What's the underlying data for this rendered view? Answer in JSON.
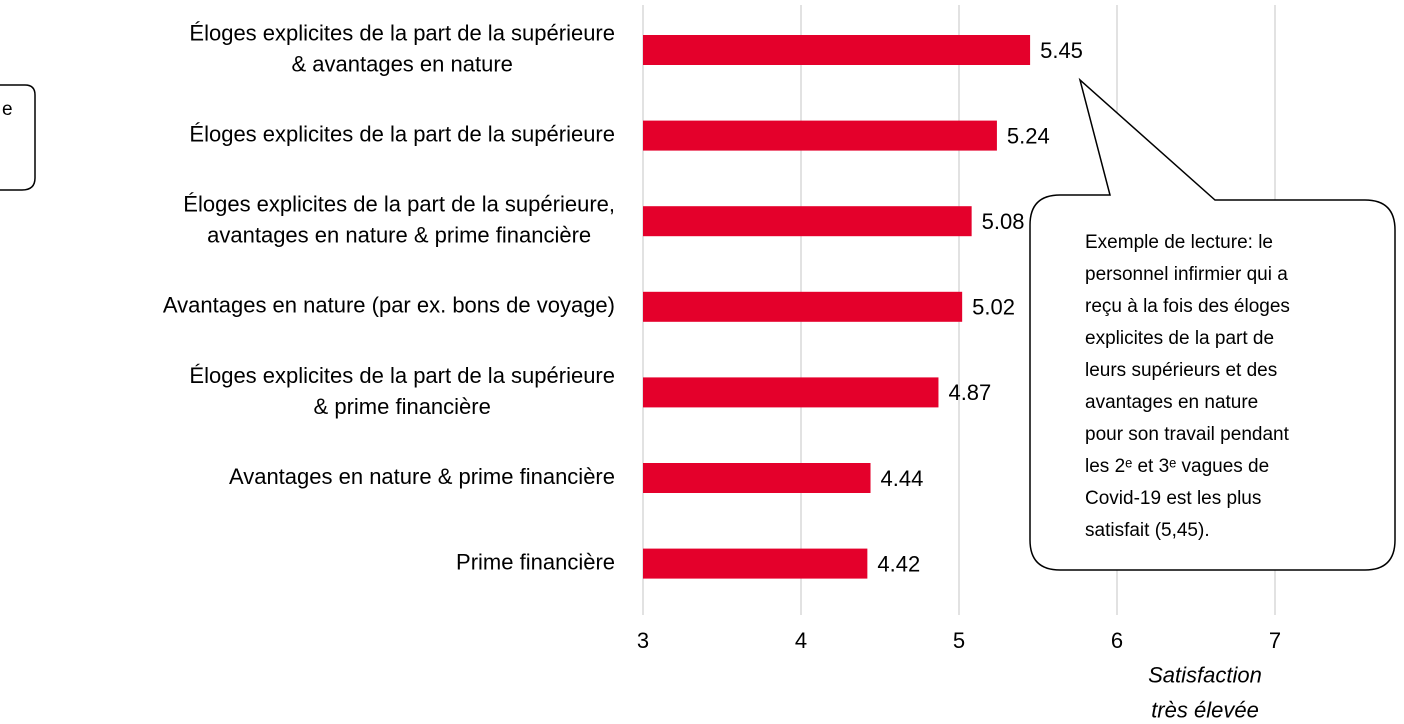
{
  "chart_data": {
    "type": "bar",
    "orientation": "horizontal",
    "categories": [
      "Éloges explicites de la part de la supérieure\n& avantages en nature",
      "Éloges explicites de la part de la supérieure",
      "Éloges explicites de la part de la supérieure,\navantages en nature & prime financière",
      "Avantages en nature (par ex. bons de voyage)",
      "Éloges explicites de la part de la supérieure\n& prime financière",
      "Avantages en nature & prime financière",
      "Prime financière"
    ],
    "values": [
      5.45,
      5.24,
      5.08,
      5.02,
      4.87,
      4.44,
      4.42
    ],
    "color": "#e4002b",
    "xlim": [
      3,
      7
    ],
    "xticks": [
      3,
      4,
      5,
      6,
      7
    ],
    "grid": true,
    "x_axis_label": "Satisfaction\ntrès élevée",
    "annotation": [
      "Exemple de lecture: le",
      "personnel infirmier qui a",
      "reçu à la fois des éloges",
      "explicites de la part de",
      "leurs supérieurs et des",
      "avantages en nature",
      "pour son travail pendant",
      "les 2ᵉ et 3ᵉ vagues de",
      "Covid-19 est les plus",
      "satisfait (5,45)."
    ],
    "left_annotation_fragment": "e"
  }
}
